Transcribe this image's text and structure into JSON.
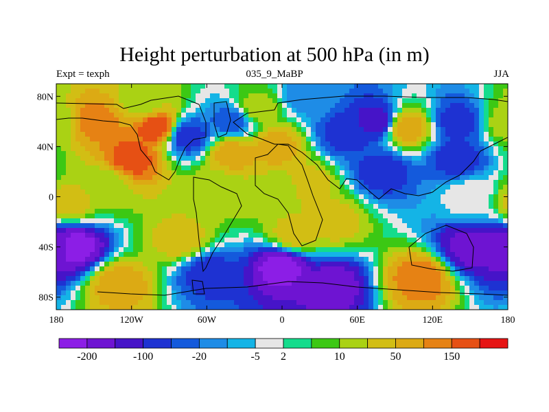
{
  "chart_data": {
    "type": "heatmap",
    "title": "Height perturbation at 500 hPa (in m)",
    "subtitle_left": "Expt = texph",
    "subtitle_center": "035_9_MaBP",
    "subtitle_right": "JJA",
    "x_ticks": [
      "180",
      "120W",
      "60W",
      "0",
      "60E",
      "120E",
      "180"
    ],
    "x_tick_values": [
      -180,
      -120,
      -60,
      0,
      60,
      120,
      180
    ],
    "y_ticks": [
      "80N",
      "40N",
      "0",
      "40S",
      "80S"
    ],
    "y_tick_values": [
      80,
      40,
      0,
      -40,
      -80
    ],
    "xlim": [
      -180,
      180
    ],
    "ylim": [
      -90,
      90
    ],
    "colorbar": {
      "colors": [
        "#8c1ee6",
        "#6e14d2",
        "#4614c8",
        "#1e32d2",
        "#145adc",
        "#1e8ce6",
        "#14b4e6",
        "#e6e6e6",
        "#14dc8c",
        "#3cc814",
        "#aad214",
        "#d2be14",
        "#dcaa14",
        "#e68214",
        "#e65014",
        "#e61414"
      ],
      "label_texts": [
        "-200",
        "-100",
        "-20",
        "-5",
        "2",
        "10",
        "50",
        "150"
      ],
      "label_boundary_index": [
        1,
        3,
        5,
        7,
        8,
        10,
        12,
        14
      ]
    },
    "field": [
      {
        "lon": -150,
        "lat": 60,
        "v": 6
      },
      {
        "lon": -100,
        "lat": 55,
        "v": 7
      },
      {
        "lon": -120,
        "lat": 30,
        "v": 7
      },
      {
        "lon": -75,
        "lat": 48,
        "v": -4
      },
      {
        "lon": -40,
        "lat": 60,
        "v": -3
      },
      {
        "lon": -40,
        "lat": 35,
        "v": 5
      },
      {
        "lon": -5,
        "lat": 40,
        "v": 5
      },
      {
        "lon": -50,
        "lat": 5,
        "v": 3
      },
      {
        "lon": 20,
        "lat": 10,
        "v": 4
      },
      {
        "lon": 50,
        "lat": 50,
        "v": -4
      },
      {
        "lon": 100,
        "lat": 55,
        "v": 5
      },
      {
        "lon": 75,
        "lat": 60,
        "v": -5
      },
      {
        "lon": 140,
        "lat": 60,
        "v": -4
      },
      {
        "lon": 80,
        "lat": 20,
        "v": -4
      },
      {
        "lon": 140,
        "lat": 30,
        "v": -4
      },
      {
        "lon": 150,
        "lat": 0,
        "v": 0
      },
      {
        "lon": -170,
        "lat": -5,
        "v": 4
      },
      {
        "lon": -140,
        "lat": 10,
        "v": 3
      },
      {
        "lon": -165,
        "lat": -40,
        "v": -7
      },
      {
        "lon": 150,
        "lat": -40,
        "v": -6
      },
      {
        "lon": 0,
        "lat": -55,
        "v": -7
      },
      {
        "lon": 40,
        "lat": -70,
        "v": -6
      },
      {
        "lon": -60,
        "lat": -60,
        "v": -4
      },
      {
        "lon": 110,
        "lat": -65,
        "v": 6
      },
      {
        "lon": -80,
        "lat": -35,
        "v": 4
      },
      {
        "lon": 10,
        "lat": -30,
        "v": 4
      },
      {
        "lon": -130,
        "lat": -70,
        "v": 5
      },
      {
        "lon": 40,
        "lat": -20,
        "v": 4
      },
      {
        "lon": 0,
        "lat": 5,
        "v": 3
      },
      {
        "lon": 180,
        "lat": 60,
        "v": 3
      },
      {
        "lon": -180,
        "lat": -40,
        "v": -6
      },
      {
        "lon": -20,
        "lat": 70,
        "v": 3
      },
      {
        "lon": -110,
        "lat": 75,
        "v": 3
      },
      {
        "lon": 20,
        "lat": 80,
        "v": -2
      }
    ]
  }
}
